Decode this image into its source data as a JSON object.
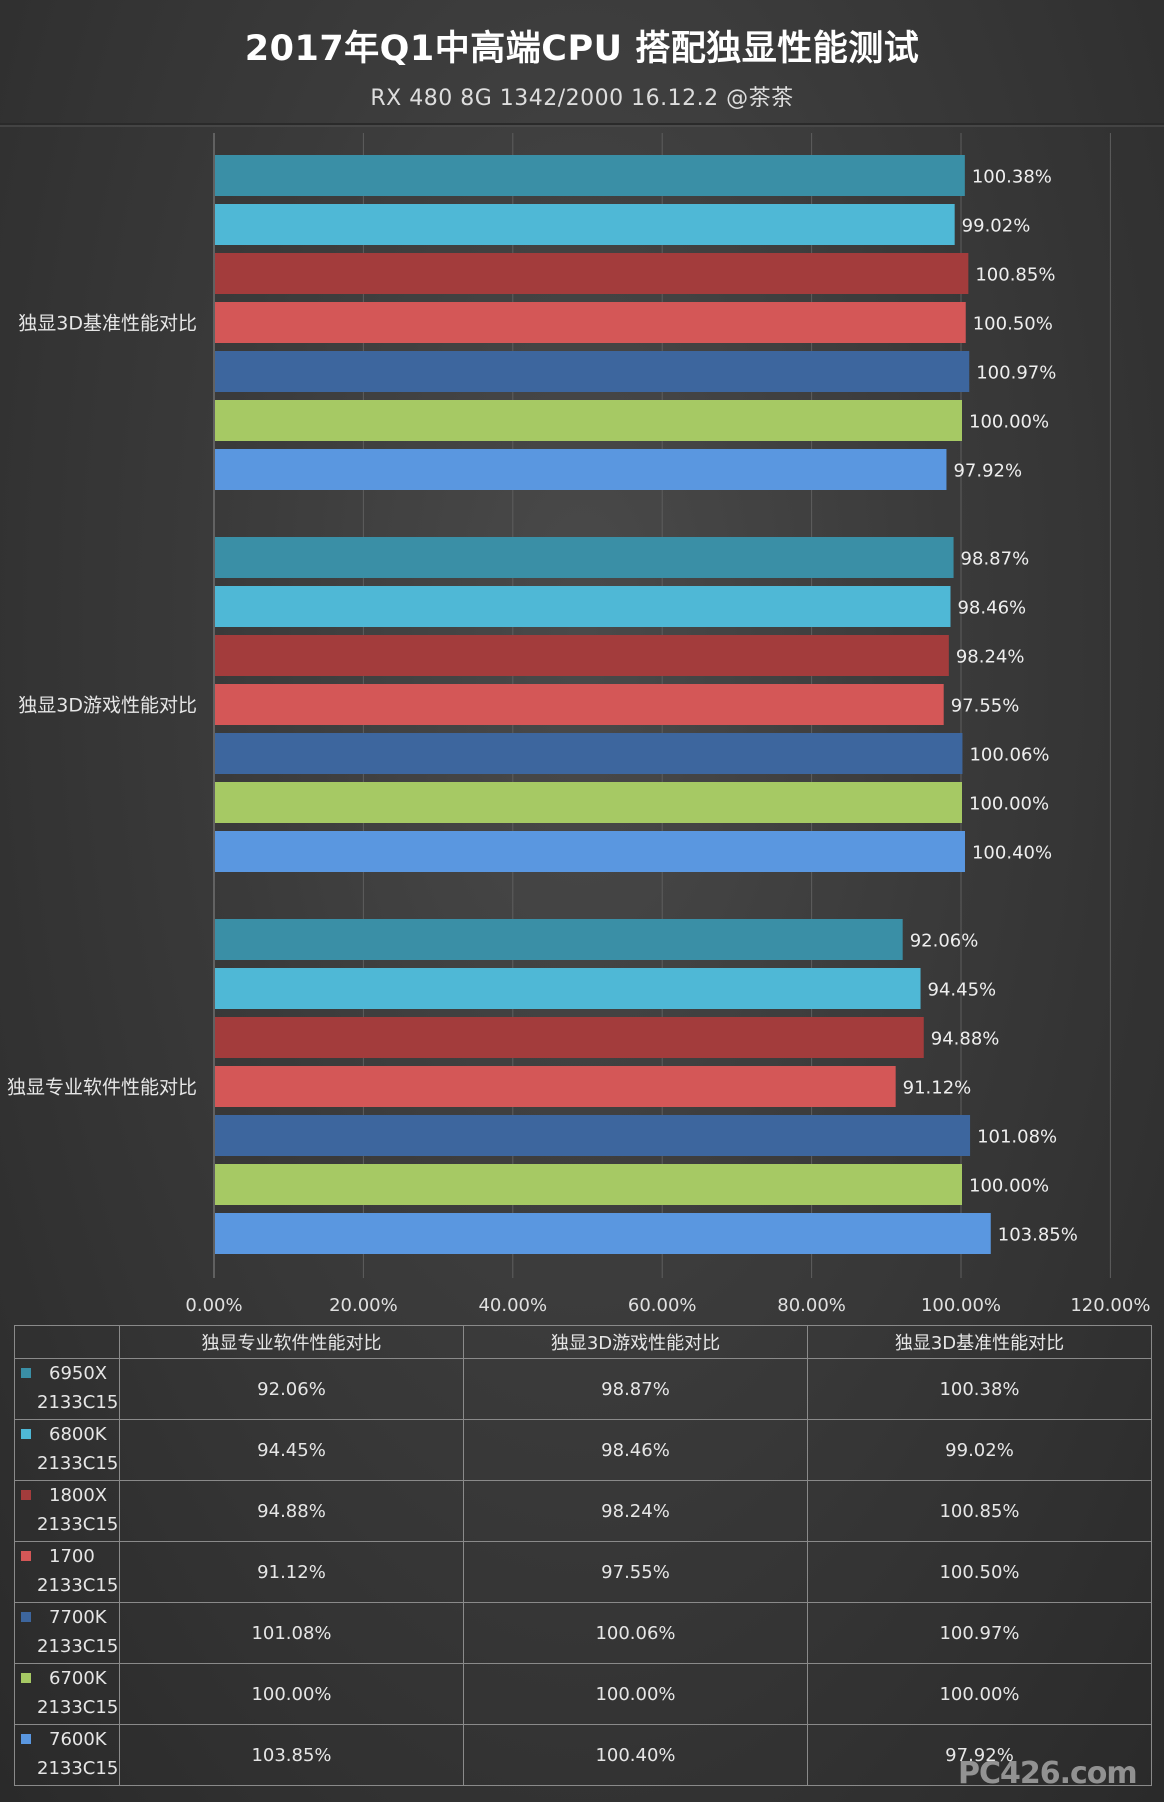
{
  "chart_data": {
    "type": "bar",
    "orientation": "horizontal",
    "title": "2017年Q1中高端CPU 搭配独显性能测试",
    "subtitle": "RX 480 8G 1342/2000 16.12.2 @茶茶",
    "categories": [
      "独显3D基准性能对比",
      "独显3D游戏性能对比",
      "独显专业软件性能对比"
    ],
    "series": [
      {
        "name": "6950X 2133C15",
        "color": "#3a8fa6",
        "values": [
          100.38,
          98.87,
          92.06
        ],
        "labels": [
          "100.38%",
          "98.87%",
          "92.06%"
        ]
      },
      {
        "name": "6800K 2133C15",
        "color": "#4fb8d6",
        "values": [
          99.02,
          98.46,
          94.45
        ],
        "labels": [
          "99.02%",
          "98.46%",
          "94.45%"
        ]
      },
      {
        "name": "1800X 2133C15",
        "color": "#a33c3c",
        "values": [
          100.85,
          98.24,
          94.88
        ],
        "labels": [
          "100.85%",
          "98.24%",
          "94.88%"
        ]
      },
      {
        "name": "1700 2133C15",
        "color": "#d45757",
        "values": [
          100.5,
          97.55,
          91.12
        ],
        "labels": [
          "100.50%",
          "97.55%",
          "91.12%"
        ]
      },
      {
        "name": "7700K 2133C15",
        "color": "#3d669e",
        "values": [
          100.97,
          100.06,
          101.08
        ],
        "labels": [
          "100.97%",
          "100.06%",
          "101.08%"
        ]
      },
      {
        "name": "6700K 2133C15",
        "color": "#a6c964",
        "values": [
          100.0,
          100.0,
          100.0
        ],
        "labels": [
          "100.00%",
          "100.00%",
          "100.00%"
        ]
      },
      {
        "name": "7600K 2133C15",
        "color": "#5a97e0",
        "values": [
          97.92,
          100.4,
          103.85
        ],
        "labels": [
          "97.92%",
          "100.40%",
          "103.85%"
        ]
      }
    ],
    "xlim": [
      0,
      120
    ],
    "xticks": [
      0,
      20,
      40,
      60,
      80,
      100,
      120
    ],
    "xtick_labels": [
      "0.00%",
      "20.00%",
      "40.00%",
      "60.00%",
      "80.00%",
      "100.00%",
      "120.00%"
    ],
    "grid": "vertical",
    "legend": "table-below"
  },
  "table": {
    "headers": [
      "独显专业软件性能对比",
      "独显3D游戏性能对比",
      "独显3D基准性能对比"
    ],
    "rows": [
      {
        "line1": "6950X",
        "line2": "2133C15",
        "color": "#3a8fa6",
        "cells": [
          "92.06%",
          "98.87%",
          "100.38%"
        ]
      },
      {
        "line1": "6800K",
        "line2": "2133C15",
        "color": "#4fb8d6",
        "cells": [
          "94.45%",
          "98.46%",
          "99.02%"
        ]
      },
      {
        "line1": "1800X",
        "line2": "2133C15",
        "color": "#a33c3c",
        "cells": [
          "94.88%",
          "98.24%",
          "100.85%"
        ]
      },
      {
        "line1": "1700",
        "line2": "2133C15",
        "color": "#d45757",
        "cells": [
          "91.12%",
          "97.55%",
          "100.50%"
        ]
      },
      {
        "line1": "7700K",
        "line2": "2133C15",
        "color": "#3d669e",
        "cells": [
          "101.08%",
          "100.06%",
          "100.97%"
        ]
      },
      {
        "line1": "6700K",
        "line2": "2133C15",
        "color": "#a6c964",
        "cells": [
          "100.00%",
          "100.00%",
          "100.00%"
        ]
      },
      {
        "line1": "7600K",
        "line2": "2133C15",
        "color": "#5a97e0",
        "cells": [
          "103.85%",
          "100.40%",
          "97.92%"
        ]
      }
    ]
  },
  "watermark": "PC426.com"
}
